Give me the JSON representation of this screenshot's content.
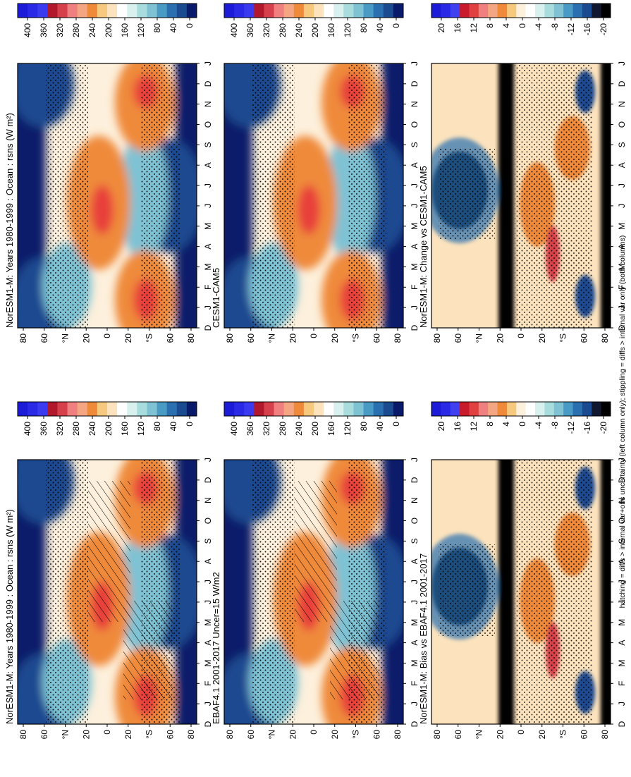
{
  "figure": {
    "footnote": "hatching = diffs > internal var+obs uncertainty (left column only); stippling = diffs > internal var only (both columns)"
  },
  "chart_data": [
    {
      "type": "heatmap",
      "title": "NorESM1-M: Years 1980-1999 : Ocean : rsns (W m²)",
      "x_axis": "latitude",
      "y_axis": "month",
      "lat_ticks": [
        "80",
        "60",
        "°N",
        "20",
        "0",
        "20",
        "°S",
        "60",
        "80"
      ],
      "month_ticks": [
        "D",
        "J",
        "F",
        "M",
        "A",
        "M",
        "J",
        "J",
        "A",
        "S",
        "O",
        "N",
        "D",
        "J"
      ],
      "colorbar": {
        "ticks": [
          "400",
          "360",
          "320",
          "280",
          "240",
          "200",
          "160",
          "120",
          "80",
          "40",
          "0"
        ],
        "range": [
          0,
          420
        ]
      },
      "overlays": [
        "stippling",
        "hatching"
      ],
      "colors": {
        "low": "#0a1a6a",
        "mid": "#ffffff",
        "high": "#e8403a"
      }
    },
    {
      "type": "heatmap",
      "title": "NorESM1-M: Years 1980-1999 : Ocean : rsns (W m²)",
      "x_axis": "latitude",
      "y_axis": "month",
      "lat_ticks": [
        "80",
        "60",
        "°N",
        "20",
        "0",
        "20",
        "°S",
        "60",
        "80"
      ],
      "month_ticks": [
        "D",
        "J",
        "F",
        "M",
        "A",
        "M",
        "J",
        "J",
        "A",
        "S",
        "O",
        "N",
        "D",
        "J"
      ],
      "colorbar": {
        "ticks": [
          "400",
          "360",
          "320",
          "280",
          "240",
          "200",
          "160",
          "120",
          "80",
          "40",
          "0"
        ],
        "range": [
          0,
          420
        ]
      },
      "overlays": [
        "stippling"
      ],
      "colors": {
        "low": "#0a1a6a",
        "mid": "#ffffff",
        "high": "#e8403a"
      }
    },
    {
      "type": "heatmap",
      "title": "EBAF4.1 2001-2017 Uncer=15 W/m2",
      "x_axis": "latitude",
      "y_axis": "month",
      "lat_ticks": [
        "80",
        "60",
        "°N",
        "20",
        "0",
        "20",
        "°S",
        "60",
        "80"
      ],
      "month_ticks": [
        "D",
        "J",
        "F",
        "M",
        "A",
        "M",
        "J",
        "J",
        "A",
        "S",
        "O",
        "N",
        "D",
        "J"
      ],
      "colorbar": {
        "ticks": [
          "400",
          "360",
          "320",
          "280",
          "240",
          "200",
          "160",
          "120",
          "80",
          "40",
          "0"
        ],
        "range": [
          0,
          420
        ]
      },
      "overlays": [
        "stippling",
        "hatching"
      ],
      "colors": {
        "low": "#0a1a6a",
        "mid": "#ffffff",
        "high": "#e8403a"
      }
    },
    {
      "type": "heatmap",
      "title": "CESM1-CAM5",
      "x_axis": "latitude",
      "y_axis": "month",
      "lat_ticks": [
        "80",
        "60",
        "°N",
        "20",
        "0",
        "20",
        "°S",
        "60",
        "80"
      ],
      "month_ticks": [
        "D",
        "J",
        "F",
        "M",
        "A",
        "M",
        "J",
        "J",
        "A",
        "S",
        "O",
        "N",
        "D",
        "J"
      ],
      "colorbar": {
        "ticks": [
          "400",
          "360",
          "320",
          "280",
          "240",
          "200",
          "160",
          "120",
          "80",
          "40",
          "0"
        ],
        "range": [
          0,
          420
        ]
      },
      "overlays": [
        "stippling"
      ],
      "colors": {
        "low": "#0a1a6a",
        "mid": "#ffffff",
        "high": "#e8403a"
      }
    },
    {
      "type": "heatmap",
      "title": "NorESM1-M: Bias vs EBAF4.1 2001-2017",
      "x_axis": "latitude",
      "y_axis": "month",
      "lat_ticks": [
        "80",
        "60",
        "°N",
        "20",
        "0",
        "20",
        "°S",
        "60",
        "80"
      ],
      "month_ticks": [
        "D",
        "J",
        "F",
        "M",
        "A",
        "M",
        "J",
        "J",
        "A",
        "S",
        "O",
        "N",
        "D",
        "J"
      ],
      "colorbar": {
        "ticks": [
          "20",
          "16",
          "12",
          "8",
          "4",
          "0",
          "-4",
          "-8",
          "-12",
          "-16",
          "-20"
        ],
        "range": [
          -22,
          22
        ]
      },
      "overlays": [
        "stippling"
      ],
      "colors": {
        "low": "#000000",
        "mid": "#fdf0dc",
        "high": "#1a1ae0"
      }
    },
    {
      "type": "heatmap",
      "title": "NorESM1-M: Change vs CESM1-CAM5",
      "x_axis": "latitude",
      "y_axis": "month",
      "lat_ticks": [
        "80",
        "60",
        "°N",
        "20",
        "0",
        "20",
        "°S",
        "60",
        "80"
      ],
      "month_ticks": [
        "D",
        "J",
        "F",
        "M",
        "A",
        "M",
        "J",
        "J",
        "A",
        "S",
        "O",
        "N",
        "D",
        "J"
      ],
      "colorbar": {
        "ticks": [
          "20",
          "16",
          "12",
          "8",
          "4",
          "0",
          "-4",
          "-8",
          "-12",
          "-16",
          "-20"
        ],
        "range": [
          -22,
          22
        ]
      },
      "overlays": [
        "stippling"
      ],
      "colors": {
        "low": "#000000",
        "mid": "#fdf0dc",
        "high": "#1a1ae0"
      }
    }
  ]
}
